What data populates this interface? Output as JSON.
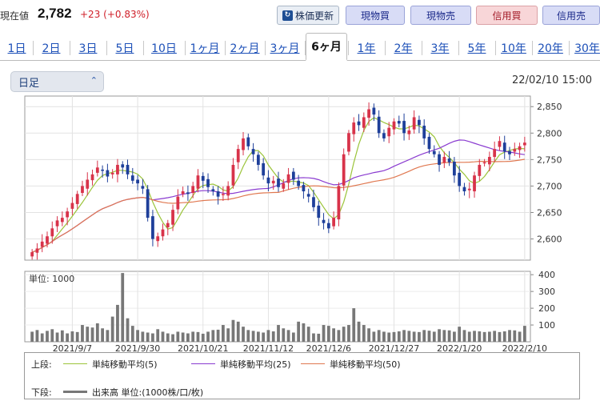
{
  "quote": {
    "label": "現在値",
    "price": "2,782",
    "change": "+23 (+0.83%)"
  },
  "toolbar": {
    "refresh_label": "株価更新",
    "buy_spot": "現物買",
    "sell_spot": "現物売",
    "buy_margin": "信用買",
    "sell_margin": "信用売"
  },
  "tabs": [
    "1日",
    "2日",
    "3日",
    "5日",
    "10日",
    "1ヶ月",
    "2ヶ月",
    "3ヶ月",
    "6ヶ月",
    "1年",
    "2年",
    "3年",
    "5年",
    "10年",
    "20年",
    "30年"
  ],
  "active_tab": "6ヶ月",
  "period_select": {
    "value": "日足"
  },
  "datetime": "22/02/10 15:00",
  "colors": {
    "up": "#d8334a",
    "down": "#1e3f9a",
    "ma5": "#9bc43a",
    "ma25": "#8a3bd0",
    "ma50": "#e07850",
    "volume": "#777777"
  },
  "chart_data": [
    {
      "type": "candlestick",
      "ylim": [
        2560,
        2870
      ],
      "yticks": [
        "2,850",
        "2,800",
        "2,750",
        "2,700",
        "2,650",
        "2,600"
      ],
      "x_labels": [
        "2021/9/7",
        "2021/9/30",
        "2021/10/21",
        "2021/11/12",
        "2021/12/6",
        "2021/12/27",
        "2022/1/20",
        "2022/2/10"
      ],
      "closes": [
        2575,
        2582,
        2595,
        2605,
        2620,
        2635,
        2640,
        2652,
        2668,
        2685,
        2700,
        2712,
        2722,
        2735,
        2730,
        2718,
        2725,
        2740,
        2735,
        2722,
        2710,
        2705,
        2695,
        2640,
        2600,
        2605,
        2618,
        2630,
        2655,
        2680,
        2690,
        2685,
        2700,
        2720,
        2710,
        2698,
        2690,
        2680,
        2685,
        2700,
        2740,
        2770,
        2790,
        2775,
        2760,
        2740,
        2720,
        2705,
        2710,
        2698,
        2705,
        2722,
        2712,
        2700,
        2690,
        2680,
        2660,
        2640,
        2630,
        2620,
        2640,
        2700,
        2760,
        2800,
        2820,
        2815,
        2830,
        2845,
        2835,
        2800,
        2790,
        2810,
        2822,
        2818,
        2800,
        2805,
        2830,
        2815,
        2790,
        2770,
        2760,
        2740,
        2755,
        2745,
        2720,
        2700,
        2690,
        2695,
        2720,
        2740,
        2745,
        2755,
        2770,
        2785,
        2765,
        2760,
        2770,
        2775,
        2782
      ]
    },
    {
      "type": "line",
      "series": [
        {
          "name": "単純移動平均(5)"
        },
        {
          "name": "単純移動平均(25)"
        },
        {
          "name": "単純移動平均(50)"
        }
      ]
    },
    {
      "type": "bar",
      "title": "単位: 1000",
      "ylim": [
        0,
        420
      ],
      "yticks": [
        "400",
        "300",
        "200",
        "100"
      ],
      "values": [
        60,
        70,
        50,
        65,
        75,
        55,
        68,
        50,
        62,
        58,
        100,
        90,
        85,
        110,
        80,
        70,
        150,
        220,
        410,
        140,
        95,
        70,
        60,
        55,
        50,
        75,
        60,
        50,
        45,
        60,
        55,
        50,
        60,
        58,
        48,
        60,
        70,
        72,
        100,
        80,
        130,
        120,
        90,
        70,
        65,
        60,
        55,
        70,
        62,
        100,
        80,
        70,
        55,
        120,
        110,
        90,
        50,
        48,
        100,
        95,
        80,
        70,
        90,
        100,
        200,
        120,
        100,
        80,
        60,
        70,
        60,
        55,
        58,
        62,
        70,
        65,
        60,
        58,
        70,
        66,
        60,
        75,
        70,
        68,
        60,
        90,
        70,
        60,
        65,
        62,
        58,
        60,
        65,
        58,
        62,
        70,
        68,
        60,
        95
      ]
    }
  ],
  "legend": {
    "upper_label": "上段:",
    "lower_label": "下段:",
    "ma5": "単純移動平均(5)",
    "ma25": "単純移動平均(25)",
    "ma50": "単純移動平均(50)",
    "volume": "出来高 単位:(1000株/口/枚)"
  }
}
